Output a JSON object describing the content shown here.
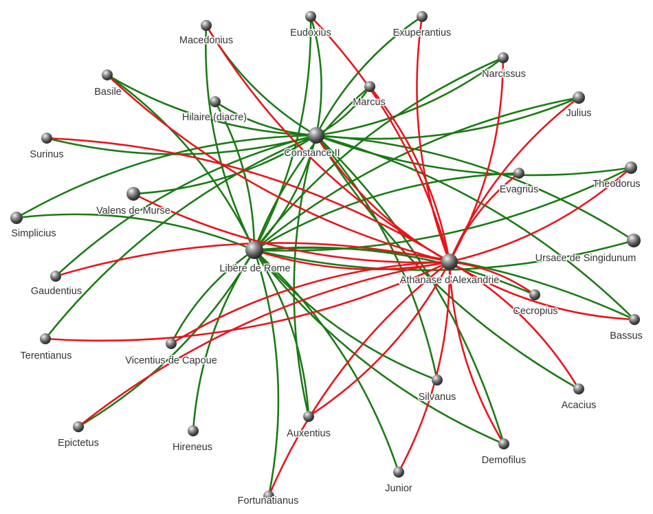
{
  "colors": {
    "positive": "#1a7a14",
    "negative": "#e8141c",
    "label": "#333333"
  },
  "nodes": [
    {
      "id": "constance",
      "label": "Constance II"
    },
    {
      "id": "libere",
      "label": "Libère de Rome"
    },
    {
      "id": "athanase",
      "label": "Athanase d'Alexandrie"
    },
    {
      "id": "macedonius",
      "label": "Macedonius"
    },
    {
      "id": "eudoxius",
      "label": "Eudoxius"
    },
    {
      "id": "exuperantius",
      "label": "Exuperantius"
    },
    {
      "id": "narcissus",
      "label": "Narcissus"
    },
    {
      "id": "basile",
      "label": "Basile"
    },
    {
      "id": "marcus",
      "label": "Marcus"
    },
    {
      "id": "hilaire",
      "label": "Hilaire (diacre)"
    },
    {
      "id": "julius",
      "label": "Julius"
    },
    {
      "id": "surinus",
      "label": "Surinus"
    },
    {
      "id": "evagrius",
      "label": "Evagrius"
    },
    {
      "id": "theodorus",
      "label": "Theodorus"
    },
    {
      "id": "valens",
      "label": "Valens de Murse"
    },
    {
      "id": "simplicius",
      "label": "Simplicius"
    },
    {
      "id": "ursace",
      "label": "Ursace de Singidunum"
    },
    {
      "id": "gaudentius",
      "label": "Gaudentius"
    },
    {
      "id": "cecropius",
      "label": "Cecropius"
    },
    {
      "id": "bassus",
      "label": "Bassus"
    },
    {
      "id": "terentianus",
      "label": "Terentianus"
    },
    {
      "id": "vicentius",
      "label": "Vicentius de Capoue"
    },
    {
      "id": "silvanus",
      "label": "Silvanus"
    },
    {
      "id": "acacius",
      "label": "Acacius"
    },
    {
      "id": "epictetus",
      "label": "Epictetus"
    },
    {
      "id": "hireneus",
      "label": "Hireneus"
    },
    {
      "id": "auxentius",
      "label": "Auxentius"
    },
    {
      "id": "demofilus",
      "label": "Demofilus"
    },
    {
      "id": "junior",
      "label": "Junior"
    },
    {
      "id": "fortunatianus",
      "label": "Fortunatianus"
    }
  ],
  "edges": [
    {
      "s": "constance",
      "t": "macedonius",
      "sign": "positive"
    },
    {
      "s": "constance",
      "t": "eudoxius",
      "sign": "positive"
    },
    {
      "s": "constance",
      "t": "exuperantius",
      "sign": "positive"
    },
    {
      "s": "constance",
      "t": "narcissus",
      "sign": "positive"
    },
    {
      "s": "constance",
      "t": "basile",
      "sign": "positive"
    },
    {
      "s": "constance",
      "t": "marcus",
      "sign": "positive"
    },
    {
      "s": "constance",
      "t": "hilaire",
      "sign": "positive"
    },
    {
      "s": "constance",
      "t": "julius",
      "sign": "positive"
    },
    {
      "s": "constance",
      "t": "surinus",
      "sign": "positive"
    },
    {
      "s": "constance",
      "t": "theodorus",
      "sign": "positive"
    },
    {
      "s": "constance",
      "t": "valens",
      "sign": "positive"
    },
    {
      "s": "constance",
      "t": "simplicius",
      "sign": "positive"
    },
    {
      "s": "constance",
      "t": "ursace",
      "sign": "positive"
    },
    {
      "s": "constance",
      "t": "gaudentius",
      "sign": "positive"
    },
    {
      "s": "constance",
      "t": "bassus",
      "sign": "positive"
    },
    {
      "s": "constance",
      "t": "terentianus",
      "sign": "positive"
    },
    {
      "s": "constance",
      "t": "silvanus",
      "sign": "positive"
    },
    {
      "s": "constance",
      "t": "acacius",
      "sign": "positive"
    },
    {
      "s": "constance",
      "t": "demofilus",
      "sign": "positive"
    },
    {
      "s": "constance",
      "t": "auxentius",
      "sign": "positive"
    },
    {
      "s": "constance",
      "t": "libere",
      "sign": "positive"
    },
    {
      "s": "constance",
      "t": "athanase",
      "sign": "negative"
    },
    {
      "s": "libere",
      "t": "macedonius",
      "sign": "positive"
    },
    {
      "s": "libere",
      "t": "eudoxius",
      "sign": "positive"
    },
    {
      "s": "libere",
      "t": "narcissus",
      "sign": "positive"
    },
    {
      "s": "libere",
      "t": "basile",
      "sign": "positive"
    },
    {
      "s": "libere",
      "t": "marcus",
      "sign": "positive"
    },
    {
      "s": "libere",
      "t": "hilaire",
      "sign": "positive"
    },
    {
      "s": "libere",
      "t": "julius",
      "sign": "positive"
    },
    {
      "s": "libere",
      "t": "simplicius",
      "sign": "positive"
    },
    {
      "s": "libere",
      "t": "evagrius",
      "sign": "positive"
    },
    {
      "s": "libere",
      "t": "ursace",
      "sign": "positive"
    },
    {
      "s": "libere",
      "t": "cecropius",
      "sign": "positive"
    },
    {
      "s": "libere",
      "t": "vicentius",
      "sign": "positive"
    },
    {
      "s": "libere",
      "t": "epictetus",
      "sign": "positive"
    },
    {
      "s": "libere",
      "t": "hireneus",
      "sign": "positive"
    },
    {
      "s": "libere",
      "t": "auxentius",
      "sign": "positive"
    },
    {
      "s": "libere",
      "t": "silvanus",
      "sign": "positive"
    },
    {
      "s": "libere",
      "t": "junior",
      "sign": "positive"
    },
    {
      "s": "libere",
      "t": "demofilus",
      "sign": "positive"
    },
    {
      "s": "libere",
      "t": "fortunatianus",
      "sign": "positive"
    },
    {
      "s": "libere",
      "t": "theodorus",
      "sign": "positive"
    },
    {
      "s": "libere",
      "t": "bassus",
      "sign": "positive"
    },
    {
      "s": "libere",
      "t": "athanase",
      "sign": "negative"
    },
    {
      "s": "athanase",
      "t": "macedonius",
      "sign": "negative"
    },
    {
      "s": "athanase",
      "t": "eudoxius",
      "sign": "negative"
    },
    {
      "s": "athanase",
      "t": "exuperantius",
      "sign": "negative"
    },
    {
      "s": "athanase",
      "t": "narcissus",
      "sign": "negative"
    },
    {
      "s": "athanase",
      "t": "basile",
      "sign": "negative"
    },
    {
      "s": "athanase",
      "t": "marcus",
      "sign": "negative"
    },
    {
      "s": "athanase",
      "t": "julius",
      "sign": "negative"
    },
    {
      "s": "athanase",
      "t": "surinus",
      "sign": "negative"
    },
    {
      "s": "athanase",
      "t": "evagrius",
      "sign": "negative"
    },
    {
      "s": "athanase",
      "t": "theodorus",
      "sign": "negative"
    },
    {
      "s": "athanase",
      "t": "valens",
      "sign": "negative"
    },
    {
      "s": "athanase",
      "t": "gaudentius",
      "sign": "negative"
    },
    {
      "s": "athanase",
      "t": "cecropius",
      "sign": "negative"
    },
    {
      "s": "athanase",
      "t": "bassus",
      "sign": "negative"
    },
    {
      "s": "athanase",
      "t": "terentianus",
      "sign": "negative"
    },
    {
      "s": "athanase",
      "t": "vicentius",
      "sign": "negative"
    },
    {
      "s": "athanase",
      "t": "acacius",
      "sign": "negative"
    },
    {
      "s": "athanase",
      "t": "epictetus",
      "sign": "negative"
    },
    {
      "s": "athanase",
      "t": "auxentius",
      "sign": "negative"
    },
    {
      "s": "athanase",
      "t": "demofilus",
      "sign": "negative"
    },
    {
      "s": "athanase",
      "t": "junior",
      "sign": "negative"
    },
    {
      "s": "athanase",
      "t": "fortunatianus",
      "sign": "negative"
    }
  ]
}
